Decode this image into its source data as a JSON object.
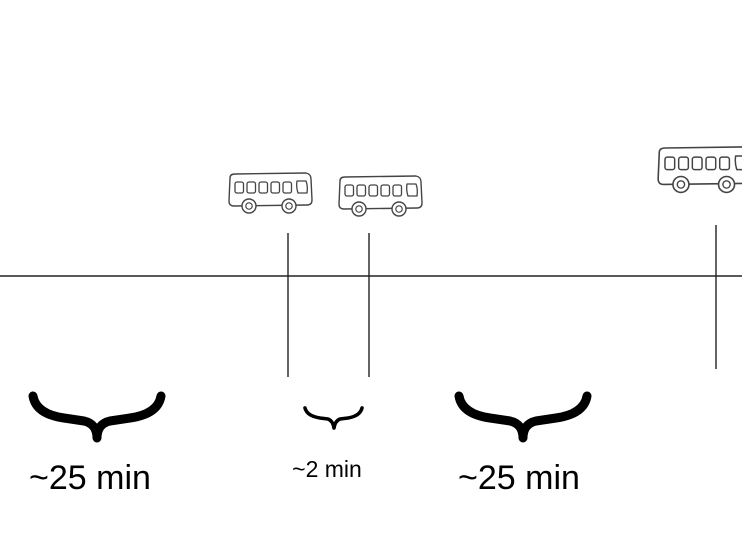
{
  "diagram": {
    "intervals": [
      {
        "label": "~25 min"
      },
      {
        "label": "~2 min"
      },
      {
        "label": "~25 min"
      }
    ],
    "icons": [
      {
        "name": "bus-icon"
      },
      {
        "name": "bus-icon"
      },
      {
        "name": "bus-icon"
      }
    ],
    "colors": {
      "ink": "#000000",
      "sketch": "#444444",
      "background": "#ffffff"
    }
  }
}
